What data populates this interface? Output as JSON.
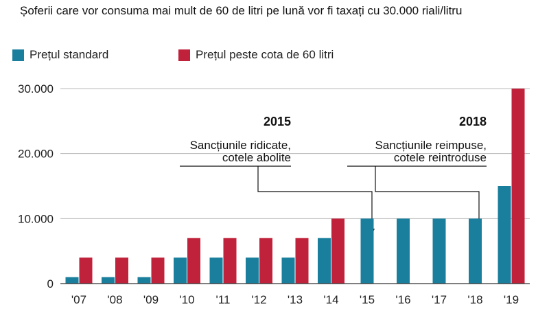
{
  "title": "Șoferii care vor consuma mai mult de 60 de litri pe lună vor fi taxați cu 30.000 riali/litru",
  "chart_data": {
    "type": "bar",
    "categories": [
      "'07",
      "'08",
      "'09",
      "'10",
      "'11",
      "'12",
      "'13",
      "'14",
      "'15",
      "'16",
      "'17",
      "'18",
      "'19"
    ],
    "series": [
      {
        "name": "Prețul standard",
        "color": "#1a7f9c",
        "values": [
          1000,
          1000,
          1000,
          4000,
          4000,
          4000,
          4000,
          7000,
          10000,
          10000,
          10000,
          10000,
          15000
        ]
      },
      {
        "name": "Prețul peste cota de 60 litri",
        "color": "#c0223b",
        "values": [
          4000,
          4000,
          4000,
          7000,
          7000,
          7000,
          7000,
          10000,
          null,
          null,
          null,
          null,
          30000
        ]
      }
    ],
    "ylim": [
      0,
      30000
    ],
    "yticks": [
      {
        "value": 0,
        "label": "0"
      },
      {
        "value": 10000,
        "label": "10.000"
      },
      {
        "value": 20000,
        "label": "20.000"
      },
      {
        "value": 30000,
        "label": "30.000"
      }
    ],
    "grid": true,
    "legend_position": "top-left",
    "annotations": [
      {
        "year": "2015",
        "line1": "Sancțiunile ridicate,",
        "line2": "cotele abolite",
        "target_category": "'15"
      },
      {
        "year": "2018",
        "line1": "Sancțiunile reimpuse,",
        "line2": "cotele reintroduse",
        "target_category": "'18"
      }
    ]
  }
}
